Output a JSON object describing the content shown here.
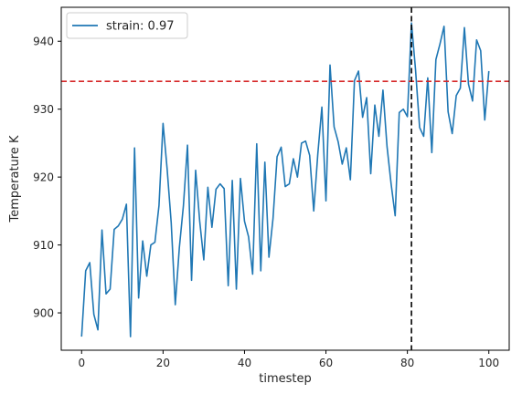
{
  "chart_data": {
    "type": "line",
    "xlabel": "timestep",
    "ylabel": "Temperature K",
    "xlim": [
      -5,
      105
    ],
    "ylim": [
      894.5,
      945
    ],
    "xticks": [
      0,
      20,
      40,
      60,
      80,
      100
    ],
    "yticks": [
      900,
      910,
      920,
      930,
      940
    ],
    "grid": false,
    "legend_position": "upper-left",
    "series": [
      {
        "name": "strain: 0.97",
        "color": "#1f77b4",
        "x": [
          0,
          1,
          2,
          3,
          4,
          5,
          6,
          7,
          8,
          9,
          10,
          11,
          12,
          13,
          14,
          15,
          16,
          17,
          18,
          19,
          20,
          21,
          22,
          23,
          24,
          25,
          26,
          27,
          28,
          29,
          30,
          31,
          32,
          33,
          34,
          35,
          36,
          37,
          38,
          39,
          40,
          41,
          42,
          43,
          44,
          45,
          46,
          47,
          48,
          49,
          50,
          51,
          52,
          53,
          54,
          55,
          56,
          57,
          58,
          59,
          60,
          61,
          62,
          63,
          64,
          65,
          66,
          67,
          68,
          69,
          70,
          71,
          72,
          73,
          74,
          75,
          76,
          77,
          78,
          79,
          80,
          81,
          82,
          83,
          84,
          85,
          86,
          87,
          88,
          89,
          90,
          91,
          92,
          93,
          94,
          95,
          96,
          97,
          98,
          99,
          100
        ],
        "values": [
          896.5,
          906.2,
          907.4,
          899.8,
          897.5,
          912.2,
          902.8,
          903.5,
          912.3,
          912.8,
          913.8,
          916.0,
          896.5,
          924.3,
          902.2,
          910.6,
          905.4,
          910.0,
          910.4,
          915.8,
          927.9,
          921.2,
          913.3,
          901.2,
          909.6,
          915.8,
          924.7,
          904.8,
          921.0,
          913.5,
          907.8,
          918.5,
          912.6,
          918.2,
          919.0,
          918.3,
          904.0,
          919.5,
          903.5,
          919.8,
          913.5,
          911.2,
          905.7,
          924.9,
          906.2,
          922.2,
          908.2,
          913.9,
          923.0,
          924.4,
          918.6,
          919.0,
          922.7,
          920.0,
          925.0,
          925.3,
          923.2,
          915.0,
          923.4,
          930.3,
          916.5,
          936.5,
          927.4,
          925.2,
          921.9,
          924.3,
          919.6,
          934.2,
          935.6,
          928.8,
          931.7,
          920.5,
          930.6,
          926.0,
          932.8,
          924.5,
          919.0,
          914.3,
          929.5,
          930.0,
          928.9,
          942.7,
          935.8,
          927.3,
          926.0,
          934.6,
          923.6,
          937.3,
          939.6,
          942.2,
          929.6,
          926.4,
          932.0,
          933.1,
          942.0,
          933.7,
          931.2,
          940.2,
          938.6,
          928.4,
          935.6
        ]
      }
    ],
    "hline": {
      "y": 934.1,
      "color": "#d62728",
      "style": "dashed"
    },
    "vline": {
      "x": 81,
      "color": "#000000",
      "style": "dashed"
    }
  }
}
